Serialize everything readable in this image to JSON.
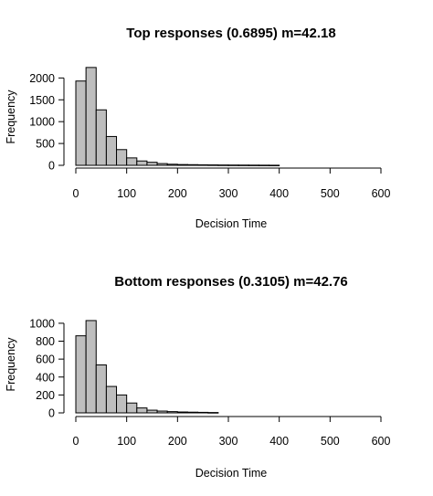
{
  "chart_data": [
    {
      "type": "bar",
      "title": "Top responses (0.6895) m=42.18",
      "xlabel": "Decision Time",
      "ylabel": "Frequency",
      "bin_width": 20,
      "bin_start": 0,
      "values": [
        1930,
        2240,
        1270,
        660,
        360,
        170,
        100,
        70,
        40,
        25,
        18,
        15,
        12,
        10,
        8,
        7,
        6,
        5,
        4,
        3
      ],
      "xlim": [
        0,
        600
      ],
      "ylim": [
        0,
        2300
      ],
      "xticks": [
        0,
        100,
        200,
        300,
        400,
        500,
        600
      ],
      "yticks": [
        0,
        500,
        1000,
        1500,
        2000
      ],
      "grid": false,
      "bar_color": "#bebebe"
    },
    {
      "type": "bar",
      "title": "Bottom responses (0.3105) m=42.76",
      "xlabel": "Decision Time",
      "ylabel": "Frequency",
      "bin_width": 20,
      "bin_start": 0,
      "values": [
        860,
        1030,
        535,
        295,
        200,
        110,
        55,
        30,
        20,
        14,
        10,
        8,
        6,
        4
      ],
      "xlim": [
        0,
        600
      ],
      "ylim": [
        0,
        1060
      ],
      "xticks": [
        0,
        100,
        200,
        300,
        400,
        500,
        600
      ],
      "yticks": [
        0,
        200,
        400,
        600,
        800,
        1000
      ],
      "grid": false,
      "bar_color": "#bebebe"
    }
  ]
}
